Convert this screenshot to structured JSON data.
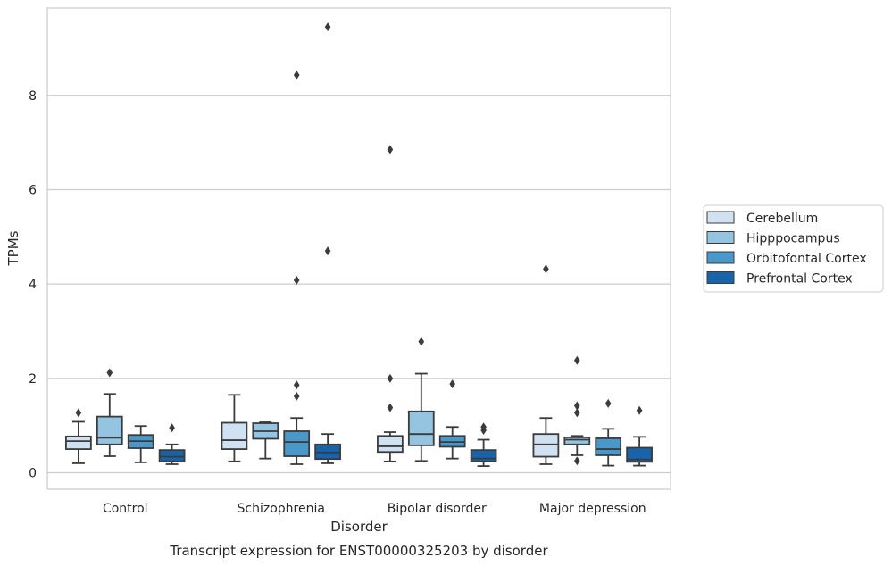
{
  "chart_data": {
    "type": "boxplot",
    "title": "Transcript expression for ENST00000325203 by disorder",
    "xlabel": "Disorder",
    "ylabel": "TPMs",
    "ylim": [
      -0.35,
      9.85
    ],
    "yticks": [
      0,
      2,
      4,
      6,
      8
    ],
    "grid": "horizontal",
    "legend_position": "right",
    "categories": [
      "Control",
      "Schizophrenia",
      "Bipolar disorder",
      "Major depression"
    ],
    "series": [
      {
        "name": "Cerebellum",
        "color": "#d0e1f2",
        "boxes": [
          {
            "whisker_low": 0.2,
            "q1": 0.5,
            "median": 0.67,
            "q3": 0.77,
            "whisker_high": 1.08,
            "outliers": [
              1.27
            ]
          },
          {
            "whisker_low": 0.24,
            "q1": 0.5,
            "median": 0.69,
            "q3": 1.06,
            "whisker_high": 1.65,
            "outliers": []
          },
          {
            "whisker_low": 0.24,
            "q1": 0.44,
            "median": 0.56,
            "q3": 0.78,
            "whisker_high": 0.86,
            "outliers": [
              1.38,
              2.0,
              6.85
            ]
          },
          {
            "whisker_low": 0.18,
            "q1": 0.34,
            "median": 0.6,
            "q3": 0.82,
            "whisker_high": 1.16,
            "outliers": [
              4.32
            ]
          }
        ]
      },
      {
        "name": "Hipppocampus",
        "color": "#94c4df",
        "boxes": [
          {
            "whisker_low": 0.35,
            "q1": 0.6,
            "median": 0.74,
            "q3": 1.19,
            "whisker_high": 1.67,
            "outliers": [
              2.12
            ]
          },
          {
            "whisker_low": 0.3,
            "q1": 0.72,
            "median": 0.88,
            "q3": 1.05,
            "whisker_high": 1.07,
            "outliers": []
          },
          {
            "whisker_low": 0.25,
            "q1": 0.58,
            "median": 0.82,
            "q3": 1.3,
            "whisker_high": 2.1,
            "outliers": [
              2.78
            ]
          },
          {
            "whisker_low": 0.37,
            "q1": 0.6,
            "median": 0.7,
            "q3": 0.75,
            "whisker_high": 0.78,
            "outliers": [
              0.25,
              1.27,
              1.42,
              2.38
            ]
          }
        ]
      },
      {
        "name": "Orbitofontal Cortex",
        "color": "#4a98c9",
        "boxes": [
          {
            "whisker_low": 0.22,
            "q1": 0.52,
            "median": 0.67,
            "q3": 0.8,
            "whisker_high": 0.99,
            "outliers": []
          },
          {
            "whisker_low": 0.18,
            "q1": 0.35,
            "median": 0.65,
            "q3": 0.88,
            "whisker_high": 1.16,
            "outliers": [
              1.62,
              1.86,
              4.08,
              8.43
            ]
          },
          {
            "whisker_low": 0.3,
            "q1": 0.55,
            "median": 0.65,
            "q3": 0.78,
            "whisker_high": 0.97,
            "outliers": [
              1.88
            ]
          },
          {
            "whisker_low": 0.15,
            "q1": 0.37,
            "median": 0.5,
            "q3": 0.73,
            "whisker_high": 0.93,
            "outliers": [
              1.47
            ]
          }
        ]
      },
      {
        "name": "Prefrontal Cortex",
        "color": "#1764ab",
        "boxes": [
          {
            "whisker_low": 0.18,
            "q1": 0.24,
            "median": 0.34,
            "q3": 0.48,
            "whisker_high": 0.6,
            "outliers": [
              0.95
            ]
          },
          {
            "whisker_low": 0.2,
            "q1": 0.29,
            "median": 0.43,
            "q3": 0.6,
            "whisker_high": 0.82,
            "outliers": [
              4.7,
              9.45
            ]
          },
          {
            "whisker_low": 0.14,
            "q1": 0.24,
            "median": 0.3,
            "q3": 0.48,
            "whisker_high": 0.7,
            "outliers": [
              0.9,
              0.97
            ]
          },
          {
            "whisker_low": 0.15,
            "q1": 0.23,
            "median": 0.28,
            "q3": 0.53,
            "whisker_high": 0.76,
            "outliers": [
              1.32
            ]
          }
        ]
      }
    ]
  }
}
